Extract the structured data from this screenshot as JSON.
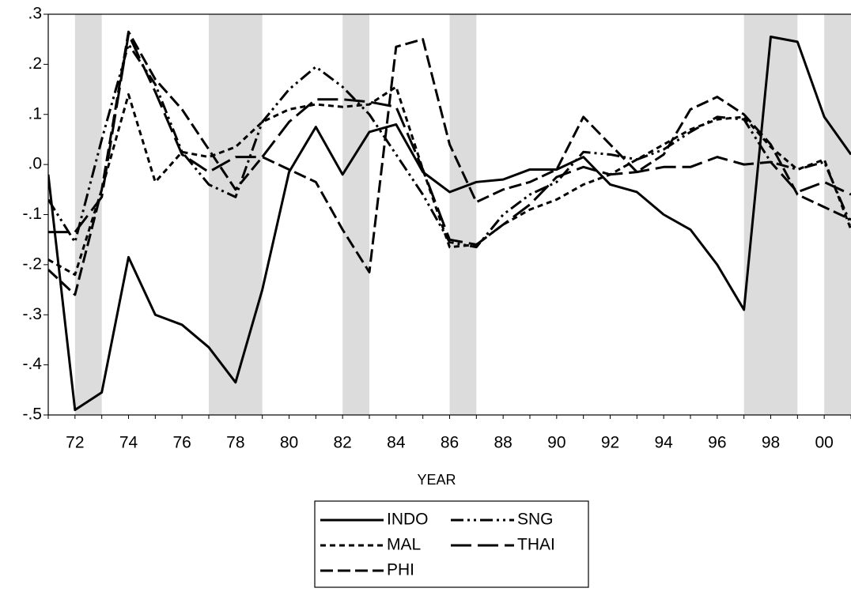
{
  "chart_data": {
    "type": "line",
    "xlabel": "YEAR",
    "categories": [
      null,
      "72",
      null,
      "74",
      null,
      "76",
      null,
      "78",
      null,
      "80",
      null,
      "82",
      null,
      "84",
      null,
      "86",
      null,
      "88",
      null,
      "90",
      null,
      "92",
      null,
      "94",
      null,
      "96",
      null,
      "98",
      null,
      "00",
      null
    ],
    "ylim": [
      -0.5,
      0.3
    ],
    "yticks": [
      {
        "value": 0.3,
        "label": ".3"
      },
      {
        "value": 0.2,
        "label": ".2"
      },
      {
        "value": 0.1,
        "label": ".1"
      },
      {
        "value": 0,
        "label": ".0"
      },
      {
        "value": -0.1,
        "label": "-.1"
      },
      {
        "value": -0.2,
        "label": "-.2"
      },
      {
        "value": -0.3,
        "label": "-.3"
      },
      {
        "value": -0.4,
        "label": "-.4"
      },
      {
        "value": -0.5,
        "label": "-.5"
      }
    ],
    "shaded": [
      {
        "from": 1,
        "to": 2
      },
      {
        "from": 6,
        "to": 8
      },
      {
        "from": 11,
        "to": 12
      },
      {
        "from": 15,
        "to": 16
      },
      {
        "from": 26,
        "to": 28
      },
      {
        "from": 29,
        "to": 30
      }
    ],
    "shade_color": "#dcdcdc",
    "legend": "bottom",
    "series": [
      {
        "name": "INDO",
        "color": "#000000",
        "dash": "none",
        "values": [
          -0.02,
          -0.49,
          -0.455,
          -0.185,
          -0.3,
          -0.32,
          -0.365,
          -0.435,
          -0.25,
          -0.015,
          0.075,
          -0.02,
          0.065,
          0.08,
          -0.015,
          -0.055,
          -0.035,
          -0.03,
          -0.01,
          -0.01,
          0.015,
          -0.04,
          -0.055,
          -0.1,
          -0.13,
          -0.2,
          -0.29,
          0.255,
          0.245,
          0.095,
          0.02
        ]
      },
      {
        "name": "MAL",
        "color": "#000000",
        "dash": "7 5",
        "values": [
          -0.19,
          -0.22,
          -0.05,
          0.14,
          -0.035,
          0.025,
          0.015,
          0.035,
          0.085,
          0.11,
          0.12,
          0.115,
          0.12,
          0.155,
          -0.01,
          -0.165,
          -0.16,
          -0.12,
          -0.09,
          -0.07,
          -0.04,
          -0.02,
          0.01,
          0.04,
          0.07,
          0.09,
          0.095,
          0.035,
          -0.01,
          0.01,
          -0.13
        ]
      },
      {
        "name": "PHI",
        "color": "#000000",
        "dash": "16 6",
        "values": [
          -0.21,
          -0.26,
          -0.05,
          0.265,
          0.17,
          0.11,
          0.03,
          -0.05,
          0.015,
          -0.01,
          -0.035,
          -0.13,
          -0.215,
          0.235,
          0.25,
          0.04,
          -0.075,
          -0.05,
          -0.035,
          -0.01,
          0.095,
          0.04,
          -0.015,
          0.02,
          0.11,
          0.135,
          0.1,
          0.04,
          -0.06,
          -0.085,
          -0.11
        ]
      },
      {
        "name": "SNG",
        "color": "#000000",
        "dash": "16 5 3 5 3 5",
        "values": [
          -0.07,
          -0.155,
          0.05,
          0.24,
          0.16,
          0.025,
          -0.04,
          -0.065,
          0.085,
          0.15,
          0.195,
          0.155,
          0.1,
          0.02,
          -0.06,
          -0.155,
          -0.165,
          -0.1,
          -0.06,
          -0.035,
          0.025,
          0.02,
          0.01,
          0.03,
          0.065,
          0.095,
          0.09,
          0.005,
          -0.01,
          0.005,
          -0.12
        ]
      },
      {
        "name": "THAI",
        "color": "#000000",
        "dash": "26 8",
        "values": [
          -0.135,
          -0.135,
          -0.065,
          0.26,
          0.145,
          0.02,
          -0.015,
          0.015,
          0.015,
          0.085,
          0.13,
          0.13,
          0.125,
          0.115,
          -0.01,
          -0.15,
          -0.16,
          -0.12,
          -0.08,
          -0.025,
          -0.005,
          -0.02,
          -0.015,
          -0.005,
          -0.005,
          0.015,
          0,
          0.005,
          -0.055,
          -0.035,
          -0.06
        ]
      }
    ]
  }
}
